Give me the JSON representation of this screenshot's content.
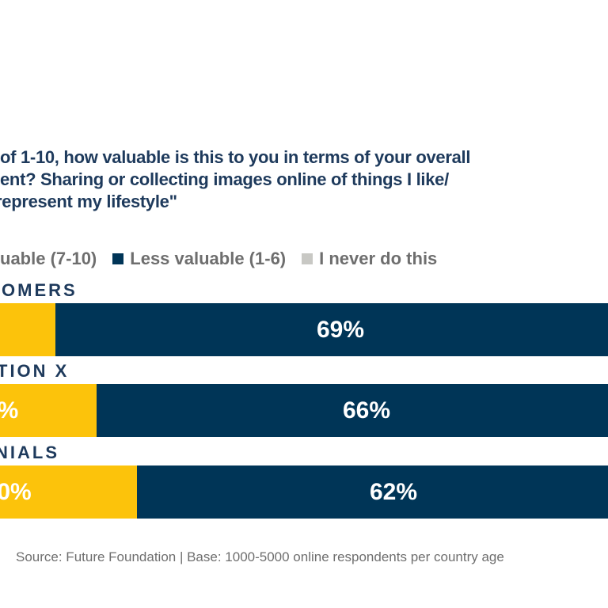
{
  "title_lines": [
    "of 1-10, how valuable is this to you in terms of your overall",
    "ent? Sharing or collecting images online of things I like/",
    " represent my lifestyle\""
  ],
  "legend": [
    {
      "label": "uable (7-10)",
      "color": "#fcc30b"
    },
    {
      "label": "Less valuable (1-6)",
      "color": "#003557"
    },
    {
      "label": "I never do this",
      "color": "#c8c8c4"
    }
  ],
  "chart_data": {
    "type": "bar",
    "orientation": "horizontal-stacked",
    "categories": [
      "OMERS",
      "TION X",
      "NIALS"
    ],
    "series": [
      {
        "name": "uable (7-10)",
        "color": "#fcc30b",
        "labels": [
          "",
          "%",
          "0%"
        ]
      },
      {
        "name": "Less valuable (1-6)",
        "color": "#003557",
        "values": [
          69,
          66,
          62
        ],
        "labels": [
          "69%",
          "66%",
          "62%"
        ]
      }
    ]
  },
  "source": "Source: Future Foundation | Base: 1000-5000 online respondents per country age"
}
